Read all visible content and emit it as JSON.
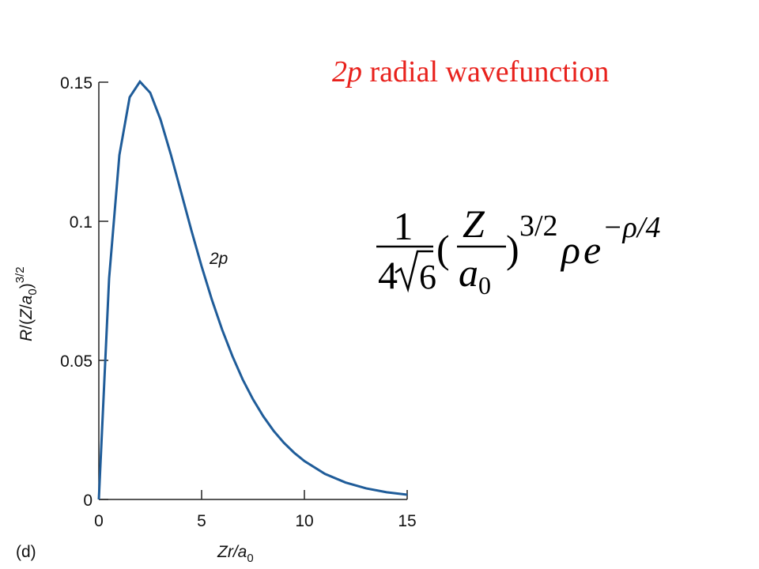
{
  "title": [
    "2p",
    " radial wavefunction"
  ],
  "formula": {
    "numerator": "1",
    "den_coeff": "4",
    "radicand": "6",
    "open": "(",
    "Z": "Z",
    "a": "a",
    "sub": "0",
    "close": ")",
    "exp1": "3/2",
    "rho": "ρ",
    "e": "e",
    "exp2": "−ρ/4"
  },
  "chart_data": {
    "type": "line",
    "panel_label": "(d)",
    "xlabel": [
      "Zr/a",
      "0"
    ],
    "ylabel": [
      "R",
      "/(",
      "Z",
      "/",
      "a",
      "0",
      ")",
      "3/2"
    ],
    "x": [
      0,
      0.5,
      1,
      1.5,
      2,
      2.5,
      3,
      3.5,
      4,
      4.5,
      5,
      5.5,
      6,
      6.5,
      7,
      7.5,
      8,
      8.5,
      9,
      9.5,
      10,
      11,
      12,
      13,
      14,
      15
    ],
    "series": [
      {
        "name": "2p",
        "color": "#1f5c99",
        "values": [
          0,
          0.0795,
          0.1238,
          0.1446,
          0.1502,
          0.1462,
          0.1366,
          0.1241,
          0.1105,
          0.0968,
          0.0838,
          0.0718,
          0.061,
          0.0515,
          0.0431,
          0.036,
          0.0299,
          0.0247,
          0.0204,
          0.0168,
          0.0138,
          0.0092,
          0.0061,
          0.004,
          0.0026,
          0.0017
        ]
      }
    ],
    "xlim": [
      0,
      15
    ],
    "xticks": [
      0,
      5,
      10,
      15
    ],
    "ylim": [
      0,
      0.15
    ],
    "yticks": [
      0,
      0.05,
      0.1,
      0.15
    ]
  }
}
